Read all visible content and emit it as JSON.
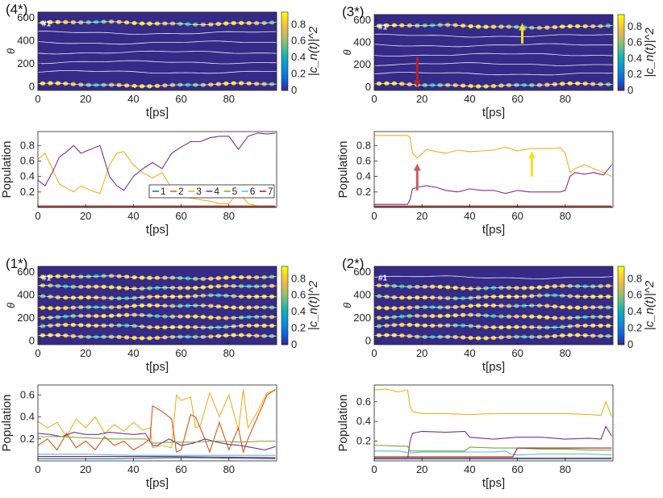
{
  "chart_data": [
    {
      "id": "4*",
      "type": "heatmap",
      "panel_label": "(4*)",
      "xlabel": "t[ps]",
      "ylabel": "θ",
      "xlim": [
        0,
        100
      ],
      "ylim": [
        -30,
        650
      ],
      "xticks": [
        0,
        20,
        40,
        60,
        80
      ],
      "yticks": [
        0,
        200,
        400,
        600
      ],
      "traj_label": "#1",
      "colorbar": {
        "label": "|c_n(t)|^2",
        "range": [
          0,
          0.95
        ],
        "ticks": [
          0,
          0.2,
          0.4,
          0.6,
          0.8
        ]
      },
      "trajectory_levels": [
        555,
        470,
        385,
        300,
        215,
        130,
        20
      ],
      "active_levels": [
        0,
        6
      ],
      "arrows": []
    },
    {
      "id": "4*",
      "type": "line",
      "xlabel": "t[ps]",
      "ylabel": "Population",
      "xlim": [
        0,
        100
      ],
      "ylim": [
        0,
        0.98
      ],
      "xticks": [
        0,
        20,
        40,
        60,
        80
      ],
      "yticks": [
        0.2,
        0.4,
        0.6,
        0.8
      ],
      "legend": {
        "position": "lower-right",
        "entries": [
          "1",
          "2",
          "3",
          "4",
          "5",
          "6",
          "7"
        ]
      },
      "arrows": [],
      "series": [
        {
          "name": "3",
          "color": "#EDB120",
          "x": [
            0,
            3,
            6,
            9,
            12,
            15,
            18,
            22,
            26,
            30,
            33,
            36,
            40,
            44,
            48,
            52,
            56,
            60,
            64,
            68,
            72,
            76,
            80,
            84,
            88,
            92,
            96,
            99.5
          ],
          "values": [
            0.62,
            0.7,
            0.5,
            0.3,
            0.25,
            0.2,
            0.28,
            0.22,
            0.18,
            0.55,
            0.7,
            0.72,
            0.55,
            0.45,
            0.38,
            0.45,
            0.25,
            0.18,
            0.12,
            0.1,
            0.08,
            0.05,
            0.05,
            0.2,
            0.05,
            0.02,
            0.02,
            0.02
          ]
        },
        {
          "name": "4",
          "color": "#7E2F8E",
          "x": [
            0,
            3,
            6,
            9,
            12,
            15,
            18,
            22,
            26,
            30,
            33,
            36,
            40,
            44,
            48,
            52,
            56,
            60,
            64,
            68,
            72,
            76,
            80,
            84,
            88,
            92,
            96,
            99.5
          ],
          "values": [
            0.35,
            0.28,
            0.45,
            0.65,
            0.72,
            0.8,
            0.7,
            0.75,
            0.8,
            0.4,
            0.28,
            0.22,
            0.4,
            0.5,
            0.58,
            0.5,
            0.7,
            0.78,
            0.85,
            0.85,
            0.9,
            0.92,
            0.92,
            0.75,
            0.92,
            0.96,
            0.95,
            0.96
          ]
        },
        {
          "name": "1",
          "color": "#0072BD",
          "x": [
            0,
            50,
            99.5
          ],
          "values": [
            0.01,
            0.01,
            0.01
          ]
        },
        {
          "name": "2",
          "color": "#D95319",
          "x": [
            0,
            50,
            99.5
          ],
          "values": [
            0.02,
            0.02,
            0.02
          ]
        },
        {
          "name": "7",
          "color": "#A2142F",
          "x": [
            0,
            50,
            99.5
          ],
          "values": [
            0.005,
            0.005,
            0.005
          ]
        }
      ]
    },
    {
      "id": "3*",
      "type": "heatmap",
      "panel_label": "(3*)",
      "xlabel": "t[ps]",
      "ylabel": "θ",
      "xlim": [
        0,
        100
      ],
      "ylim": [
        -30,
        650
      ],
      "xticks": [
        0,
        20,
        40,
        60,
        80
      ],
      "yticks": [
        0,
        200,
        400,
        600
      ],
      "traj_label": "#1",
      "colorbar": {
        "label": "|c_n(t)|^2",
        "range": [
          0,
          0.95
        ],
        "ticks": [
          0,
          0.2,
          0.4,
          0.6,
          0.8
        ]
      },
      "trajectory_levels": [
        545,
        460,
        375,
        290,
        205,
        120,
        20
      ],
      "active_levels": [
        0,
        6
      ],
      "arrows": [
        {
          "color": "#B22222",
          "x": 18,
          "from": 270,
          "to": 30
        },
        {
          "color": "#F2E025",
          "x": 62,
          "from": 390,
          "to": 540
        }
      ]
    },
    {
      "id": "3*",
      "type": "line",
      "xlabel": "t[ps]",
      "ylabel": "Population",
      "xlim": [
        0,
        100
      ],
      "ylim": [
        0,
        0.98
      ],
      "xticks": [
        0,
        20,
        40,
        60,
        80
      ],
      "yticks": [
        0.2,
        0.4,
        0.6,
        0.8
      ],
      "legend": null,
      "arrows": [
        {
          "color": "#CD5C5C",
          "x": 18,
          "from": 0.22,
          "to": 0.52
        },
        {
          "color": "#F2E025",
          "x": 66,
          "from": 0.4,
          "to": 0.68
        }
      ],
      "series": [
        {
          "name": "3",
          "color": "#EDB120",
          "x": [
            0,
            5,
            10,
            14,
            15,
            16,
            18,
            22,
            26,
            30,
            35,
            40,
            45,
            50,
            55,
            60,
            65,
            70,
            75,
            78,
            80,
            82,
            84,
            88,
            92,
            96,
            99.5
          ],
          "values": [
            0.93,
            0.93,
            0.93,
            0.93,
            0.9,
            0.7,
            0.64,
            0.75,
            0.72,
            0.7,
            0.74,
            0.72,
            0.73,
            0.74,
            0.78,
            0.73,
            0.76,
            0.76,
            0.76,
            0.77,
            0.7,
            0.45,
            0.5,
            0.55,
            0.5,
            0.45,
            0.4
          ]
        },
        {
          "name": "4",
          "color": "#7E2F8E",
          "x": [
            0,
            5,
            10,
            14,
            15,
            16,
            18,
            22,
            26,
            30,
            35,
            40,
            45,
            50,
            55,
            60,
            65,
            70,
            75,
            78,
            80,
            82,
            84,
            88,
            92,
            96,
            99.5
          ],
          "values": [
            0.04,
            0.04,
            0.04,
            0.04,
            0.1,
            0.24,
            0.26,
            0.28,
            0.26,
            0.22,
            0.2,
            0.24,
            0.22,
            0.22,
            0.18,
            0.22,
            0.2,
            0.2,
            0.2,
            0.2,
            0.22,
            0.4,
            0.45,
            0.43,
            0.45,
            0.42,
            0.55
          ]
        },
        {
          "name": "1",
          "color": "#0072BD",
          "x": [
            0,
            50,
            99.5
          ],
          "values": [
            0.01,
            0.01,
            0.01
          ]
        },
        {
          "name": "2",
          "color": "#D95319",
          "x": [
            0,
            50,
            99.5
          ],
          "values": [
            0.02,
            0.02,
            0.02
          ]
        },
        {
          "name": "7",
          "color": "#A2142F",
          "x": [
            0,
            50,
            99.5
          ],
          "values": [
            0.005,
            0.005,
            0.005
          ]
        }
      ]
    },
    {
      "id": "1*",
      "type": "heatmap",
      "panel_label": "(1*)",
      "xlabel": "t[ps]",
      "ylabel": "θ",
      "xlim": [
        0,
        100
      ],
      "ylim": [
        -30,
        650
      ],
      "xticks": [
        0,
        20,
        40,
        60,
        80
      ],
      "yticks": [
        0,
        200,
        400,
        600
      ],
      "traj_label": "#1",
      "colorbar": {
        "label": "|c_n(t)|^2",
        "range": [
          0,
          0.95
        ],
        "ticks": [
          0,
          0.2,
          0.4,
          0.6,
          0.8
        ]
      },
      "trajectory_levels": [
        555,
        470,
        385,
        300,
        215,
        130,
        40
      ],
      "active_levels": [
        0,
        1,
        2,
        3,
        4,
        5,
        6
      ],
      "arrows": []
    },
    {
      "id": "1*",
      "type": "line",
      "xlabel": "t[ps]",
      "ylabel": "Population",
      "xlim": [
        0,
        100
      ],
      "ylim": [
        0,
        0.69
      ],
      "xticks": [
        0,
        20,
        40,
        60,
        80
      ],
      "yticks": [
        0.2,
        0.4,
        0.6
      ],
      "legend": null,
      "arrows": [],
      "series": [
        {
          "name": "3",
          "color": "#EDB120",
          "x": [
            0,
            4,
            8,
            12,
            16,
            20,
            24,
            28,
            32,
            36,
            40,
            44,
            47,
            48,
            52,
            56,
            58,
            60,
            64,
            66,
            68,
            72,
            76,
            80,
            84,
            86,
            88,
            92,
            96,
            99.5
          ],
          "values": [
            0.36,
            0.3,
            0.35,
            0.22,
            0.38,
            0.3,
            0.4,
            0.25,
            0.33,
            0.27,
            0.35,
            0.28,
            0.3,
            0.12,
            0.14,
            0.12,
            0.6,
            0.55,
            0.58,
            0.3,
            0.32,
            0.62,
            0.4,
            0.6,
            0.28,
            0.65,
            0.3,
            0.45,
            0.62,
            0.64
          ]
        },
        {
          "name": "2",
          "color": "#D95319",
          "x": [
            0,
            4,
            8,
            12,
            16,
            20,
            24,
            28,
            32,
            36,
            40,
            44,
            47,
            48,
            52,
            56,
            58,
            60,
            64,
            66,
            68,
            72,
            76,
            80,
            84,
            86,
            88,
            92,
            96,
            99.5
          ],
          "values": [
            0.14,
            0.2,
            0.1,
            0.25,
            0.12,
            0.18,
            0.1,
            0.22,
            0.14,
            0.18,
            0.1,
            0.15,
            0.2,
            0.5,
            0.45,
            0.38,
            0.08,
            0.1,
            0.42,
            0.4,
            0.3,
            0.08,
            0.35,
            0.1,
            0.3,
            0.08,
            0.2,
            0.4,
            0.6,
            0.65
          ]
        },
        {
          "name": "4",
          "color": "#7E2F8E",
          "x": [
            0,
            5,
            10,
            15,
            20,
            25,
            30,
            35,
            40,
            45,
            48,
            50,
            55,
            60,
            65,
            70,
            75,
            80,
            85,
            90,
            95,
            99.5
          ],
          "values": [
            0.25,
            0.24,
            0.22,
            0.26,
            0.24,
            0.24,
            0.26,
            0.25,
            0.24,
            0.25,
            0.14,
            0.14,
            0.2,
            0.14,
            0.16,
            0.2,
            0.17,
            0.15,
            0.14,
            0.12,
            0.1,
            0.13
          ]
        },
        {
          "name": "5",
          "color": "#77AC30",
          "x": [
            0,
            10,
            20,
            30,
            40,
            45,
            48,
            55,
            65,
            75,
            85,
            95,
            99.5
          ],
          "values": [
            0.22,
            0.22,
            0.21,
            0.2,
            0.2,
            0.2,
            0.16,
            0.17,
            0.17,
            0.18,
            0.17,
            0.18,
            0.18
          ]
        },
        {
          "name": "6",
          "color": "#4DBEEE",
          "x": [
            0,
            20,
            40,
            60,
            80,
            99.5
          ],
          "values": [
            0.06,
            0.06,
            0.05,
            0.05,
            0.05,
            0.05
          ]
        },
        {
          "name": "1",
          "color": "#0072BD",
          "x": [
            0,
            30,
            60,
            99.5
          ],
          "values": [
            0.02,
            0.02,
            0.03,
            0.02
          ]
        },
        {
          "name": "7",
          "color": "#A2142F",
          "x": [
            0,
            50,
            99.5
          ],
          "values": [
            0.04,
            0.04,
            0.03
          ]
        }
      ]
    },
    {
      "id": "2*",
      "type": "heatmap",
      "panel_label": "(2*)",
      "xlabel": "t[ps]",
      "ylabel": "θ",
      "xlim": [
        0,
        100
      ],
      "ylim": [
        -30,
        650
      ],
      "xticks": [
        0,
        20,
        40,
        60,
        80
      ],
      "yticks": [
        0,
        200,
        400,
        600
      ],
      "traj_label": "#1",
      "colorbar": {
        "label": "|c_n(t)|^2",
        "range": [
          0,
          0.95
        ],
        "ticks": [
          0,
          0.2,
          0.4,
          0.6,
          0.8
        ]
      },
      "trajectory_levels": [
        555,
        470,
        385,
        300,
        215,
        130,
        40
      ],
      "active_levels": [
        1,
        2,
        3,
        4,
        5,
        6
      ],
      "arrows": []
    },
    {
      "id": "2*",
      "type": "line",
      "xlabel": "t[ps]",
      "ylabel": "Population",
      "xlim": [
        0,
        100
      ],
      "ylim": [
        0,
        0.77
      ],
      "xticks": [
        0,
        20,
        40,
        60,
        80
      ],
      "yticks": [
        0.2,
        0.4,
        0.6
      ],
      "legend": null,
      "arrows": [],
      "series": [
        {
          "name": "3",
          "color": "#EDB120",
          "x": [
            0,
            5,
            10,
            14,
            15,
            16,
            20,
            30,
            40,
            50,
            60,
            70,
            80,
            90,
            95,
            97,
            99.5
          ],
          "values": [
            0.72,
            0.73,
            0.7,
            0.72,
            0.55,
            0.5,
            0.48,
            0.48,
            0.47,
            0.48,
            0.48,
            0.48,
            0.48,
            0.47,
            0.46,
            0.6,
            0.45
          ]
        },
        {
          "name": "4",
          "color": "#7E2F8E",
          "x": [
            0,
            14,
            15,
            16,
            20,
            30,
            38,
            40,
            50,
            60,
            70,
            80,
            90,
            95,
            97,
            99.5
          ],
          "values": [
            0.02,
            0.02,
            0.2,
            0.28,
            0.3,
            0.29,
            0.3,
            0.24,
            0.22,
            0.24,
            0.24,
            0.22,
            0.23,
            0.22,
            0.35,
            0.25
          ]
        },
        {
          "name": "5",
          "color": "#77AC30",
          "x": [
            0,
            10,
            14,
            15,
            20,
            38,
            40,
            50,
            60,
            70,
            80,
            90,
            99.5
          ],
          "values": [
            0.16,
            0.15,
            0.15,
            0.1,
            0.1,
            0.1,
            0.14,
            0.13,
            0.13,
            0.12,
            0.12,
            0.11,
            0.11
          ]
        },
        {
          "name": "6",
          "color": "#4DBEEE",
          "x": [
            0,
            10,
            15,
            20,
            30,
            40,
            50,
            55,
            57,
            60,
            70,
            80,
            90,
            99.5
          ],
          "values": [
            0.1,
            0.1,
            0.08,
            0.09,
            0.09,
            0.09,
            0.09,
            0.1,
            0.07,
            0.06,
            0.07,
            0.07,
            0.07,
            0.06
          ]
        },
        {
          "name": "7",
          "color": "#A2142F",
          "x": [
            0,
            20,
            40,
            58,
            60,
            70,
            80,
            90,
            99.5
          ],
          "values": [
            0.04,
            0.04,
            0.04,
            0.04,
            0.13,
            0.13,
            0.13,
            0.13,
            0.13
          ]
        },
        {
          "name": "2",
          "color": "#D95319",
          "x": [
            0,
            50,
            99.5
          ],
          "values": [
            0.03,
            0.03,
            0.03
          ]
        },
        {
          "name": "1",
          "color": "#0072BD",
          "x": [
            0,
            50,
            99.5
          ],
          "values": [
            0.02,
            0.02,
            0.02
          ]
        }
      ]
    }
  ]
}
